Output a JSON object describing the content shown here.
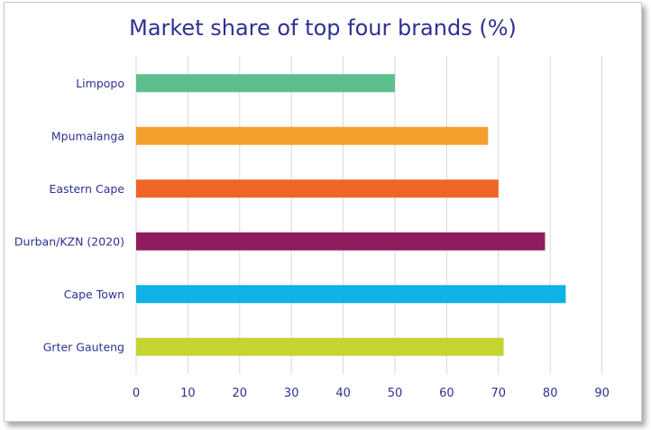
{
  "chart_data": {
    "type": "bar",
    "orientation": "horizontal",
    "title": "Market share of top four brands (%)",
    "categories": [
      "Limpopo",
      "Mpumalanga",
      "Eastern Cape",
      "Durban/KZN (2020)",
      "Cape Town",
      "Grter Gauteng"
    ],
    "values": [
      50,
      68,
      70,
      79,
      83,
      71
    ],
    "colors": [
      "#5cbf8e",
      "#f5a02d",
      "#f06427",
      "#8e1c5e",
      "#0fb2e4",
      "#c5d42f"
    ],
    "xlim": [
      0,
      90
    ],
    "xticks": [
      "0",
      "10",
      "20",
      "30",
      "40",
      "50",
      "60",
      "70",
      "80",
      "90"
    ],
    "grid": true,
    "legend": "none"
  }
}
